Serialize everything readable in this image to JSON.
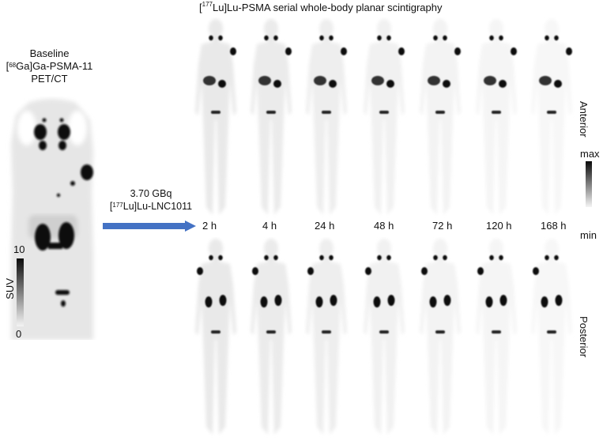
{
  "figure": {
    "title": "[177Lu]Lu-PSMA serial whole-body planar scintigraphy",
    "title_sup": "177",
    "title_pre": "[",
    "title_post": "Lu]Lu-PSMA serial whole-body planar scintigraphy"
  },
  "baseline": {
    "line1": "Baseline",
    "line2_pre": "[",
    "line2_sup": "68",
    "line2_post": "Ga]Ga-PSMA-11",
    "line3": "PET/CT"
  },
  "pet_scale": {
    "label": "SUV",
    "max": "10",
    "min": "0"
  },
  "injection": {
    "dose": "3.70 GBq",
    "agent_pre": "[",
    "agent_sup": "177",
    "agent_post": "Lu]Lu-LNC1011",
    "arrow_color": "#4472C4"
  },
  "timepoints": [
    "2 h",
    "4 h",
    "24 h",
    "48 h",
    "72 h",
    "120 h",
    "168 h"
  ],
  "views": {
    "anterior": "Anterior",
    "posterior": "Posterior"
  },
  "intensity_scale": {
    "max": "max",
    "min": "min"
  }
}
